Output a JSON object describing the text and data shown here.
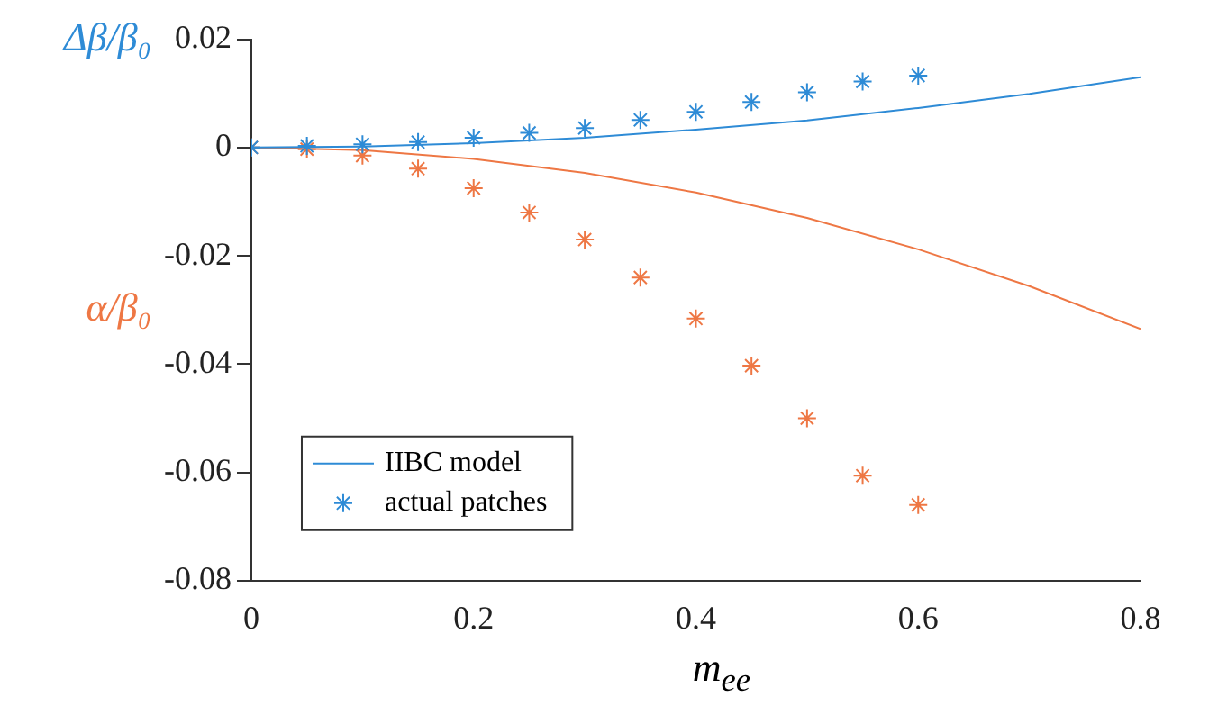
{
  "chart_data": {
    "type": "line",
    "xlabel": "m$_{ee}$",
    "ylabel": "Δβ/β₀",
    "annotations": [
      "α/β₀"
    ],
    "xlim": [
      0,
      0.8
    ],
    "xticks": [
      0,
      0.2,
      0.4,
      0.6,
      0.8
    ],
    "ylim": [
      -0.08,
      0.02
    ],
    "yticks": [
      -0.08,
      -0.06,
      -0.04,
      -0.02,
      0,
      0.02
    ],
    "grid": false,
    "legend": "bottom left",
    "series": [
      {
        "name": "IIBC model",
        "color": "#2e8bd6",
        "marker": "none",
        "x": [
          0,
          0.1,
          0.2,
          0.3,
          0.4,
          0.5,
          0.6,
          0.7,
          0.8
        ],
        "values": [
          0,
          0.0002,
          0.0008,
          0.0018,
          0.0033,
          0.005,
          0.0073,
          0.0099,
          0.013
        ]
      },
      {
        "name": "actual patches",
        "type": "scatter",
        "color": "#2e8bd6",
        "marker": "cross",
        "x": [
          0,
          0.05,
          0.1,
          0.15,
          0.2,
          0.25,
          0.3,
          0.35,
          0.4,
          0.45,
          0.5,
          0.55,
          0.6
        ],
        "values": [
          0,
          0.0003,
          0.0006,
          0.001,
          0.0018,
          0.0027,
          0.0036,
          0.0051,
          0.0066,
          0.0084,
          0.0102,
          0.0122,
          0.0133
        ]
      },
      {
        "color": "#ee7744",
        "marker": "none",
        "x": [
          0,
          0.1,
          0.2,
          0.3,
          0.4,
          0.5,
          0.6,
          0.7,
          0.8
        ],
        "values": [
          0,
          -0.0005,
          -0.0021,
          -0.0047,
          -0.0083,
          -0.013,
          -0.0188,
          -0.0256,
          -0.0335
        ]
      },
      {
        "type": "scatter",
        "color": "#ee7744",
        "marker": "cross",
        "x": [
          0,
          0.05,
          0.1,
          0.15,
          0.2,
          0.25,
          0.3,
          0.35,
          0.4,
          0.45,
          0.5,
          0.55,
          0.6
        ],
        "values": [
          0,
          -0.0003,
          -0.0015,
          -0.0039,
          -0.0075,
          -0.012,
          -0.017,
          -0.024,
          -0.0316,
          -0.0403,
          -0.05,
          -0.0606,
          -0.066
        ]
      }
    ]
  }
}
